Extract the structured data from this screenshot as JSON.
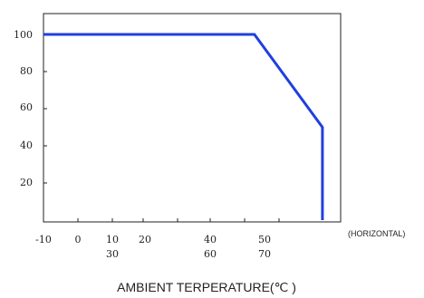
{
  "chart_data": {
    "type": "line",
    "title": "",
    "ylabel": "",
    "xlabel": "AMBIENT TERPERATURE(℃ )",
    "axis_note": "(HORIZONTAL)",
    "ylim": [
      0,
      110
    ],
    "y_ticks": [
      "100",
      "80",
      "60",
      "40",
      "20"
    ],
    "x_tick_labels": [
      "-10",
      "0",
      "10",
      "20",
      "40",
      "50"
    ],
    "x_tick_labels_row2": [
      "30",
      "60",
      "70"
    ],
    "series": [
      {
        "points": [
          {
            "x": -10,
            "y": 100
          },
          {
            "x": 52,
            "y": 100
          },
          {
            "x": 72,
            "y": 50
          },
          {
            "x": 72,
            "y": 0
          }
        ]
      }
    ],
    "line_color": "#1f3fe0",
    "grid": false
  }
}
